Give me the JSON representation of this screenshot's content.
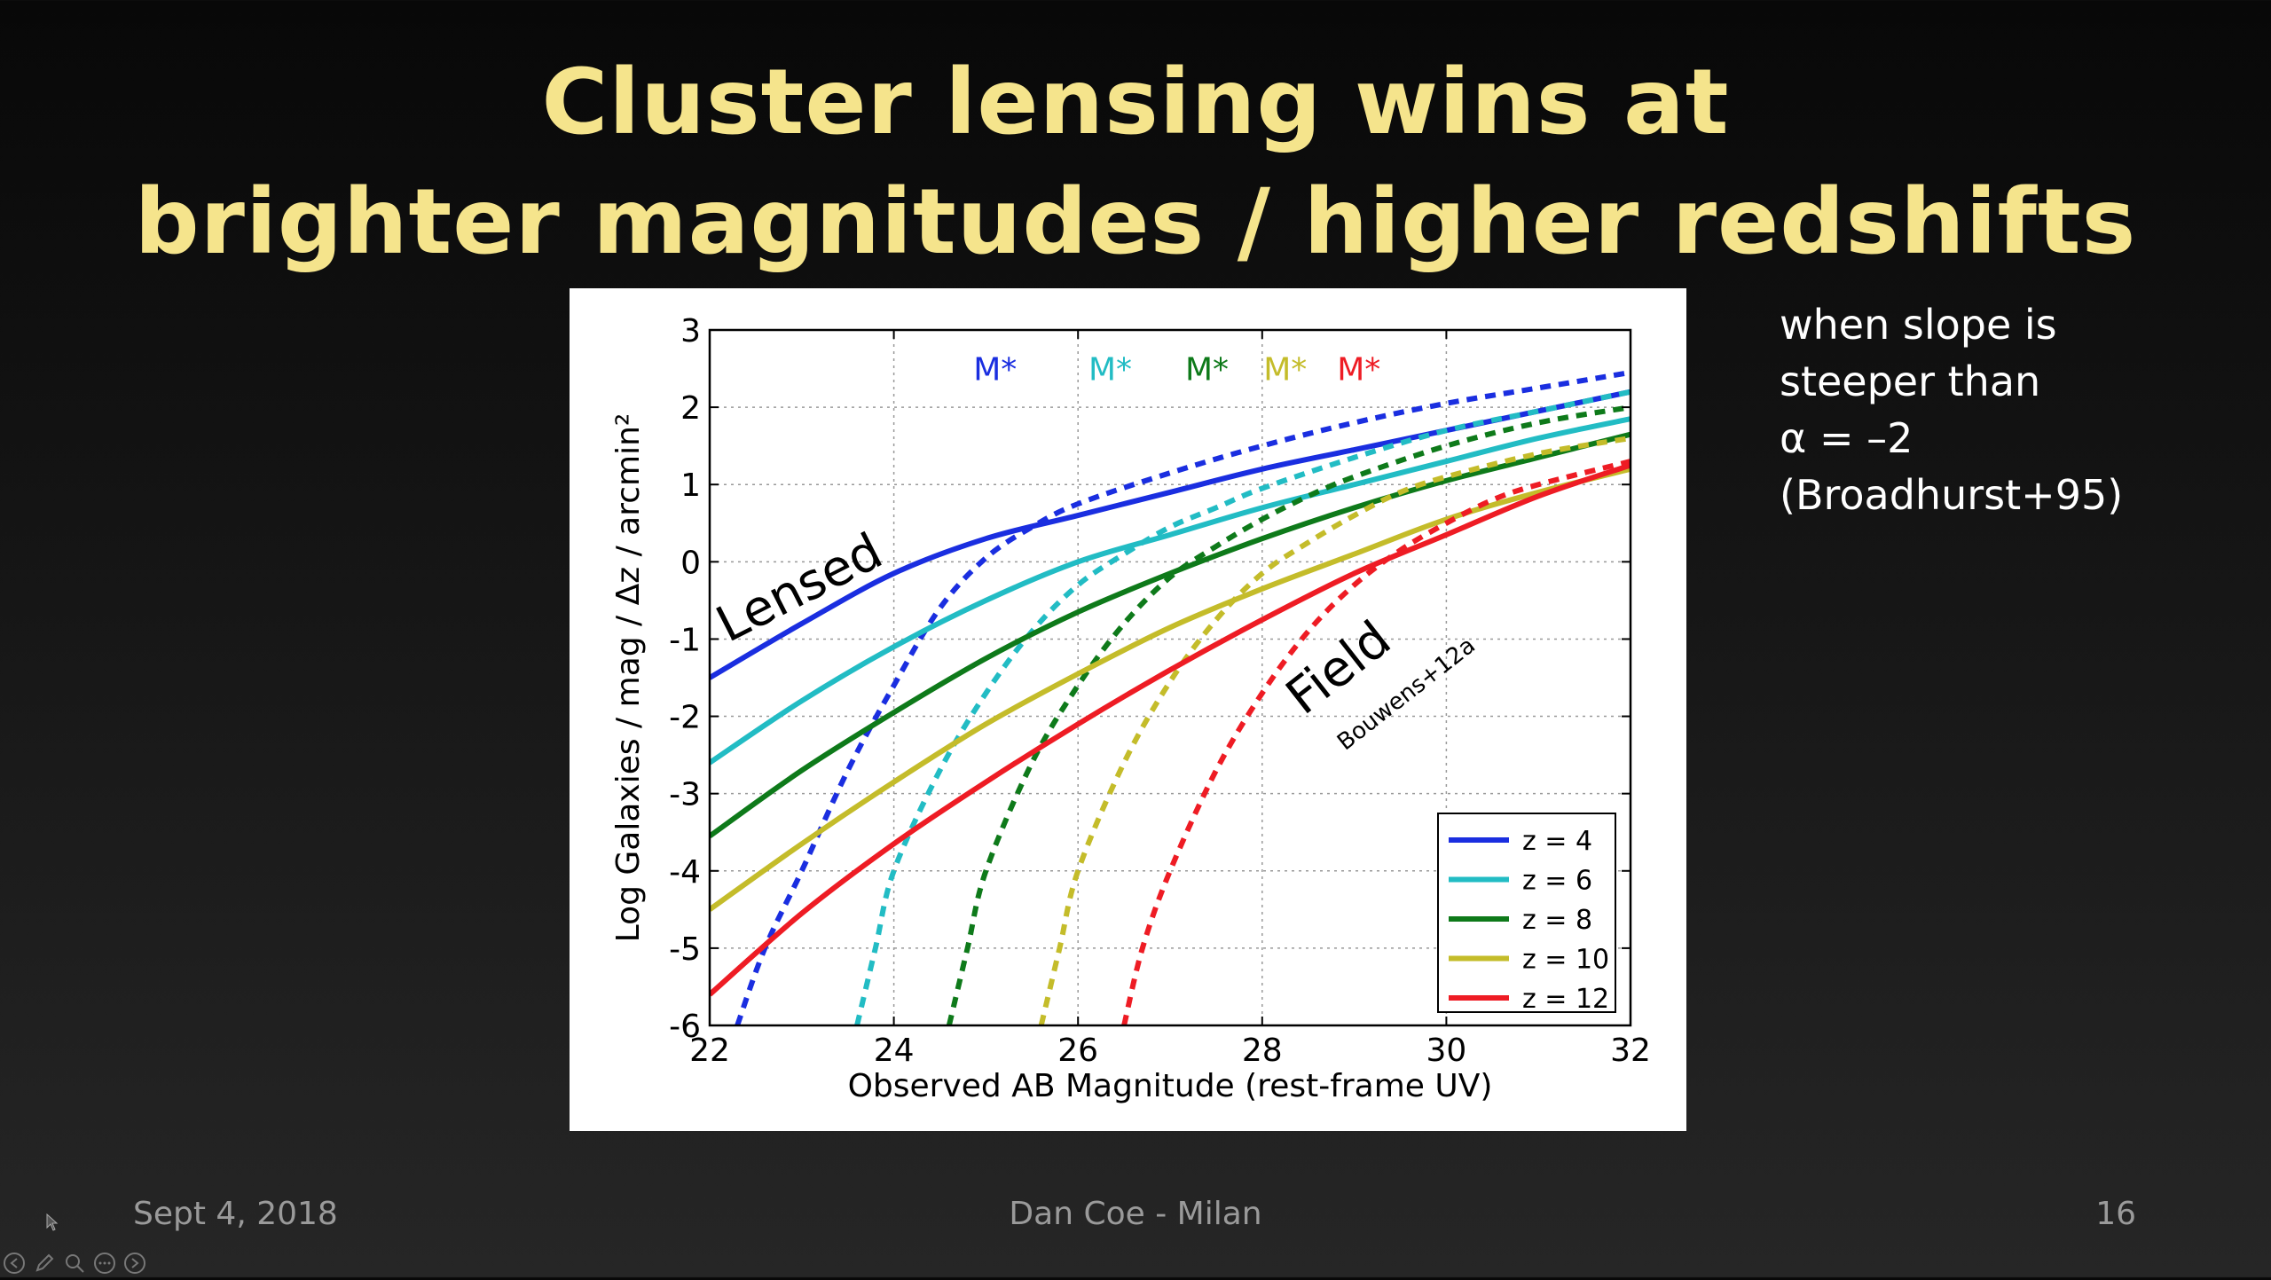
{
  "slide": {
    "title_line1": "Cluster lensing wins at",
    "title_line2": "brighter magnitudes / higher redshifts",
    "side_note": [
      "when slope is",
      "steeper than",
      "α = –2",
      "(Broadhurst+95)"
    ],
    "footer_date": "Sept 4, 2018",
    "footer_center": "Dan Coe - Milan",
    "page_number": "16",
    "title_color": "#f5e48c"
  },
  "toolbar": {
    "icons": [
      "previous-icon",
      "pen-icon",
      "zoom-icon",
      "more-icon",
      "next-icon"
    ]
  },
  "chart_data": {
    "type": "line",
    "xlabel": "Observed AB Magnitude (rest-frame UV)",
    "ylabel": "Log Galaxies / mag / Δz / arcmin²",
    "xlim": [
      22,
      32
    ],
    "ylim": [
      -6,
      3
    ],
    "xticks": [
      22,
      24,
      26,
      28,
      30,
      32
    ],
    "yticks": [
      3,
      2,
      1,
      0,
      -1,
      -2,
      -3,
      -4,
      -5,
      -6
    ],
    "grid": true,
    "legend": "bottom-right",
    "annotations": {
      "lensed": "Lensed",
      "field": "Field",
      "field_ref": "Bouwens+12a",
      "mstar": [
        {
          "label": "M*",
          "x": 25.1,
          "color": "#1a2ee0"
        },
        {
          "label": "M*",
          "x": 26.35,
          "color": "#22bcc4"
        },
        {
          "label": "M*",
          "x": 27.4,
          "color": "#0e7a1a"
        },
        {
          "label": "M*",
          "x": 28.25,
          "color": "#c4bc2a"
        },
        {
          "label": "M*",
          "x": 29.05,
          "color": "#ee1c24"
        }
      ]
    },
    "series": [
      {
        "name": "z = 4",
        "color": "#1a2ee0",
        "lensed": {
          "x": [
            22,
            23,
            24,
            25,
            26,
            27,
            28,
            29,
            30,
            31,
            32
          ],
          "y": [
            -1.5,
            -0.8,
            -0.15,
            0.3,
            0.6,
            0.9,
            1.2,
            1.45,
            1.7,
            1.95,
            2.2
          ]
        },
        "field": {
          "x": [
            22.3,
            22.6,
            23,
            23.5,
            24,
            24.5,
            25,
            25.5,
            26,
            27,
            28,
            29,
            30,
            31,
            32
          ],
          "y": [
            -6,
            -5,
            -4,
            -2.7,
            -1.6,
            -0.6,
            0.05,
            0.45,
            0.75,
            1.15,
            1.5,
            1.8,
            2.05,
            2.25,
            2.45
          ]
        }
      },
      {
        "name": "z = 6",
        "color": "#22bcc4",
        "lensed": {
          "x": [
            22,
            23,
            24,
            25,
            26,
            27,
            28,
            29,
            30,
            31,
            32
          ],
          "y": [
            -2.6,
            -1.8,
            -1.1,
            -0.5,
            0.0,
            0.35,
            0.7,
            1.0,
            1.3,
            1.6,
            1.85
          ]
        },
        "field": {
          "x": [
            23.6,
            23.8,
            24,
            24.5,
            25,
            25.5,
            26,
            26.5,
            27,
            27.5,
            28,
            29,
            30,
            31,
            32
          ],
          "y": [
            -6,
            -5,
            -4,
            -2.7,
            -1.7,
            -0.9,
            -0.3,
            0.1,
            0.45,
            0.7,
            0.95,
            1.35,
            1.7,
            1.95,
            2.2
          ]
        }
      },
      {
        "name": "z = 8",
        "color": "#0e7a1a",
        "lensed": {
          "x": [
            22,
            23,
            24,
            25,
            26,
            27,
            28,
            29,
            30,
            31,
            32
          ],
          "y": [
            -3.55,
            -2.7,
            -1.95,
            -1.25,
            -0.65,
            -0.15,
            0.3,
            0.7,
            1.05,
            1.35,
            1.65
          ]
        },
        "field": {
          "x": [
            24.6,
            24.8,
            25,
            25.5,
            26,
            26.5,
            27,
            27.5,
            28,
            28.5,
            29,
            30,
            31,
            32
          ],
          "y": [
            -6,
            -5,
            -4,
            -2.6,
            -1.6,
            -0.8,
            -0.2,
            0.2,
            0.55,
            0.85,
            1.1,
            1.5,
            1.8,
            2.0
          ]
        }
      },
      {
        "name": "z = 10",
        "color": "#c4bc2a",
        "lensed": {
          "x": [
            22,
            23,
            24,
            25,
            26,
            27,
            28,
            29,
            30,
            31,
            32
          ],
          "y": [
            -4.5,
            -3.65,
            -2.85,
            -2.1,
            -1.45,
            -0.85,
            -0.35,
            0.1,
            0.55,
            0.9,
            1.2
          ]
        },
        "field": {
          "x": [
            25.6,
            25.8,
            26,
            26.5,
            27,
            27.5,
            28,
            28.5,
            29,
            29.5,
            30,
            31,
            32
          ],
          "y": [
            -6,
            -5,
            -4,
            -2.6,
            -1.55,
            -0.75,
            -0.15,
            0.25,
            0.6,
            0.9,
            1.1,
            1.4,
            1.6
          ]
        }
      },
      {
        "name": "z = 12",
        "color": "#ee1c24",
        "lensed": {
          "x": [
            22,
            23,
            24,
            25,
            26,
            27,
            28,
            29,
            30,
            31,
            32
          ],
          "y": [
            -5.6,
            -4.55,
            -3.65,
            -2.85,
            -2.1,
            -1.4,
            -0.75,
            -0.15,
            0.35,
            0.85,
            1.25
          ]
        },
        "field": {
          "x": [
            26.5,
            26.7,
            27,
            27.5,
            28,
            28.5,
            29,
            29.5,
            30,
            30.5,
            31,
            32
          ],
          "y": [
            -6,
            -5,
            -4,
            -2.7,
            -1.7,
            -0.9,
            -0.3,
            0.15,
            0.5,
            0.8,
            1.0,
            1.3
          ]
        }
      }
    ]
  }
}
